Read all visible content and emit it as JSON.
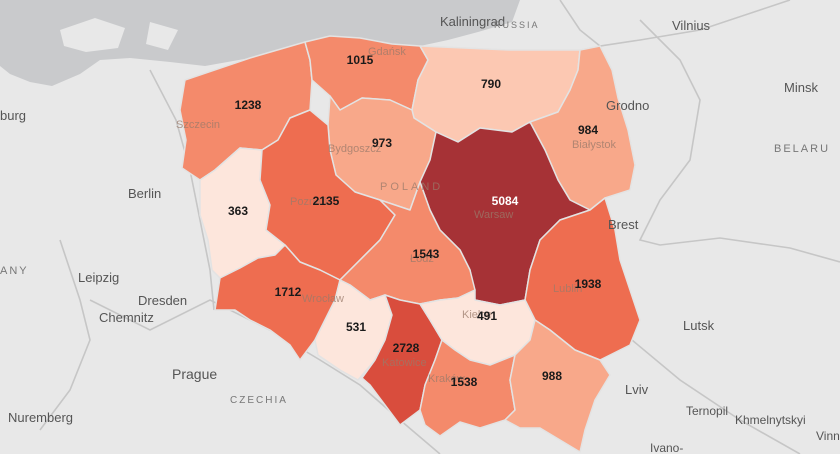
{
  "map": {
    "colors": {
      "sea": "#c9cacc",
      "land": "#e8e8e8",
      "scale": [
        "#fde6dc",
        "#fcc8b2",
        "#f8a88a",
        "#f48a6b",
        "#ee6d50",
        "#d94d3d",
        "#a63236"
      ]
    },
    "regions": [
      {
        "id": "zachodniopomorskie",
        "value": 1238,
        "shade": 3
      },
      {
        "id": "pomorskie",
        "value": 1015,
        "shade": 3
      },
      {
        "id": "warminsko-mazurskie",
        "value": 790,
        "shade": 1
      },
      {
        "id": "podlaskie",
        "value": 984,
        "shade": 2
      },
      {
        "id": "kujawsko-pomorskie",
        "value": 973,
        "shade": 2
      },
      {
        "id": "lubuskie",
        "value": 363,
        "shade": 0
      },
      {
        "id": "wielkopolskie",
        "value": 2135,
        "shade": 4
      },
      {
        "id": "mazowieckie",
        "value": 5084,
        "shade": 6
      },
      {
        "id": "lodzkie",
        "value": 1543,
        "shade": 3
      },
      {
        "id": "lubelskie",
        "value": 1938,
        "shade": 4
      },
      {
        "id": "dolnoslaskie",
        "value": 1712,
        "shade": 4
      },
      {
        "id": "opolskie",
        "value": 531,
        "shade": 0
      },
      {
        "id": "slaskie",
        "value": 2728,
        "shade": 5
      },
      {
        "id": "swietokrzyskie",
        "value": 491,
        "shade": 0
      },
      {
        "id": "malopolskie",
        "value": 1538,
        "shade": 3
      },
      {
        "id": "podkarpackie",
        "value": 988,
        "shade": 2
      }
    ],
    "places": {
      "kaliningrad": "Kaliningrad",
      "russia": "RUSSIA",
      "vilnius": "Vilnius",
      "minsk": "Minsk",
      "belarus": "BELARU",
      "grodno": "Grodno",
      "bialystok": "Białystok",
      "gdansk": "Gdańsk",
      "szczecin": "Szczecin",
      "bydgoszcz": "Bydgoszcz",
      "poland": "POLAND",
      "warsaw": "Warsaw",
      "berlin": "Berlin",
      "burg": "burg",
      "germany": "ANY",
      "poznan": "Poznań",
      "brest": "Brest",
      "leipzig": "Leipzig",
      "dresden": "Dresden",
      "chemnitz": "Chemnitz",
      "wroclaw": "Wrocław",
      "lodz": "Łódź",
      "lublin": "Lublin",
      "kielce": "Kielce",
      "katowice": "Katowice",
      "krakow": "Kraków",
      "prague": "Prague",
      "czechia": "CZECHIA",
      "nuremberg": "Nuremberg",
      "lutsk": "Lutsk",
      "lviv": "Lviv",
      "ternopil": "Ternopil",
      "khmelnytskyi": "Khmelnytskyi",
      "ivano": "Ivano-",
      "vinn": "Vinn"
    }
  }
}
